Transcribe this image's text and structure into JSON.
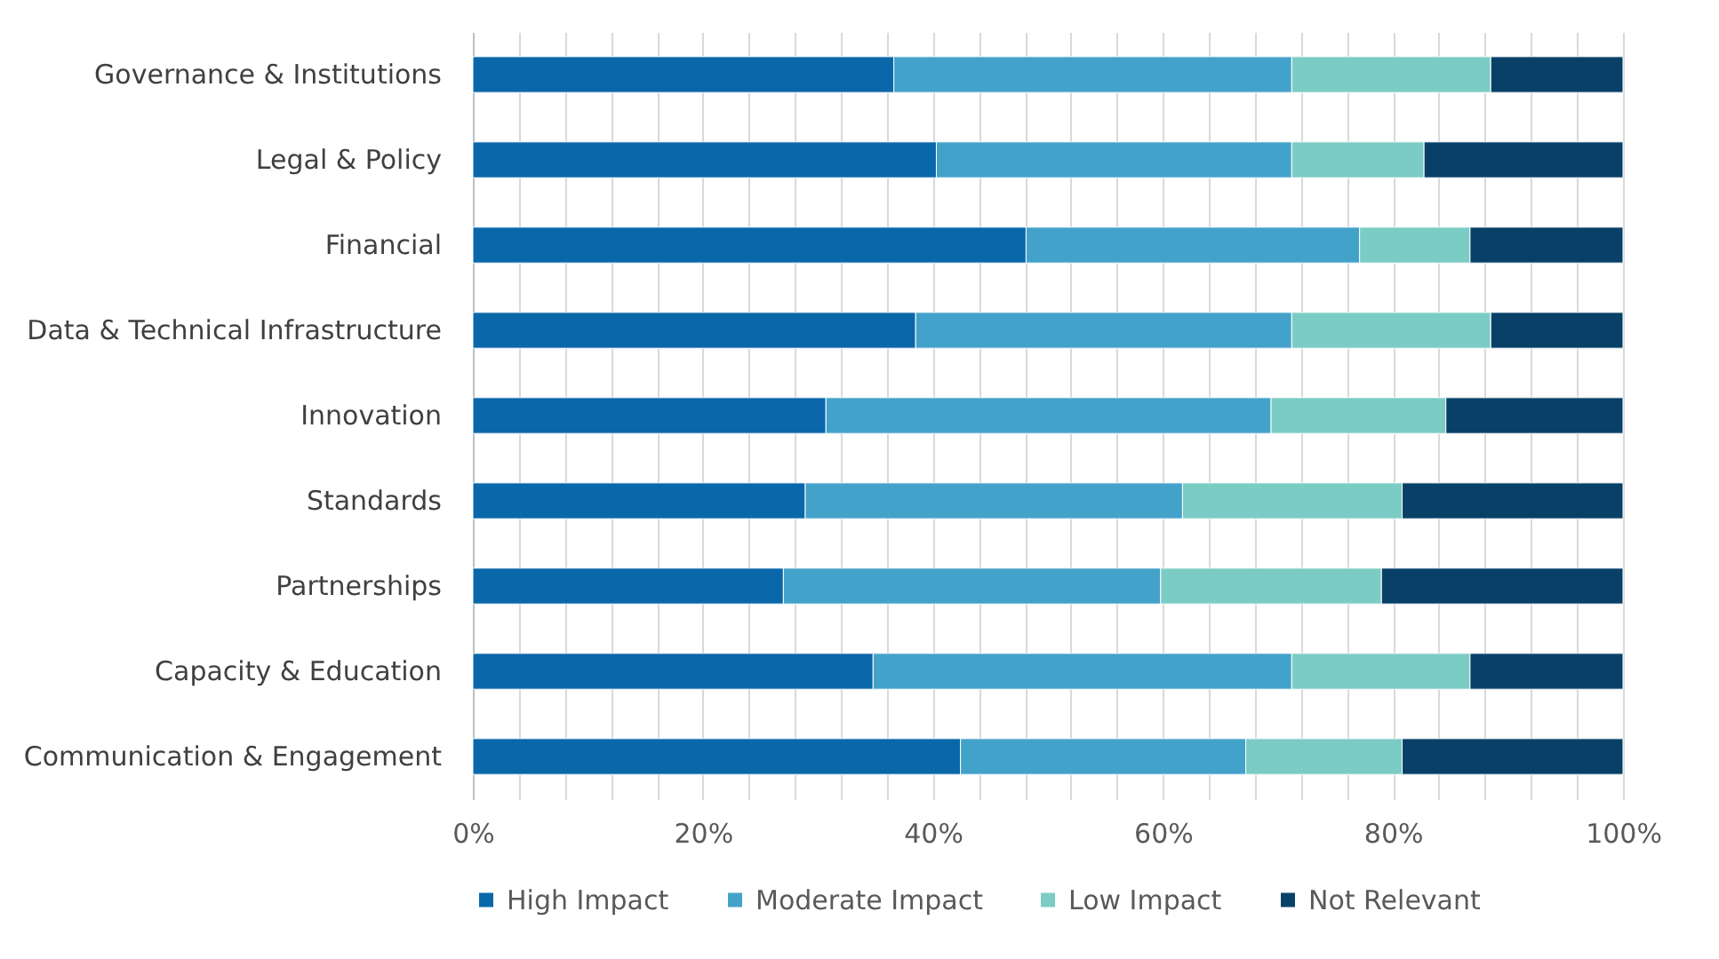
{
  "chart_data": {
    "type": "bar",
    "orientation": "horizontal",
    "stacked": true,
    "categories": [
      "Governance & Institutions",
      "Legal & Policy",
      "Financial",
      "Data & Technical Infrastructure",
      "Innovation",
      "Standards",
      "Partnerships",
      "Capacity & Education",
      "Communication & Engagement"
    ],
    "series": [
      {
        "name": "High Impact",
        "color": "#0a67aa",
        "values": [
          36.6,
          40.3,
          48.1,
          38.5,
          30.7,
          28.9,
          27.0,
          34.8,
          42.4
        ]
      },
      {
        "name": "Moderate Impact",
        "color": "#43a2ca",
        "values": [
          34.6,
          30.9,
          29.0,
          32.7,
          38.7,
          32.8,
          32.8,
          36.4,
          24.8
        ]
      },
      {
        "name": "Low Impact",
        "color": "#7bccc4",
        "values": [
          17.3,
          11.5,
          9.6,
          17.3,
          15.2,
          19.1,
          19.2,
          15.5,
          13.6
        ]
      },
      {
        "name": "Not Relevant",
        "color": "#084068",
        "values": [
          11.5,
          17.3,
          13.3,
          11.5,
          15.4,
          19.2,
          21.0,
          13.3,
          19.2
        ]
      }
    ],
    "xlim": [
      0,
      100
    ],
    "xticks": [
      {
        "value": 0,
        "label": "0%"
      },
      {
        "value": 4,
        "label": null
      },
      {
        "value": 8,
        "label": null
      },
      {
        "value": 12,
        "label": null
      },
      {
        "value": 16,
        "label": null
      },
      {
        "value": 20,
        "label": "20%"
      },
      {
        "value": 24,
        "label": null
      },
      {
        "value": 28,
        "label": null
      },
      {
        "value": 32,
        "label": null
      },
      {
        "value": 36,
        "label": null
      },
      {
        "value": 40,
        "label": "40%"
      },
      {
        "value": 44,
        "label": null
      },
      {
        "value": 48,
        "label": null
      },
      {
        "value": 52,
        "label": null
      },
      {
        "value": 56,
        "label": null
      },
      {
        "value": 60,
        "label": "60%"
      },
      {
        "value": 64,
        "label": null
      },
      {
        "value": 68,
        "label": null
      },
      {
        "value": 72,
        "label": null
      },
      {
        "value": 76,
        "label": null
      },
      {
        "value": 80,
        "label": "80%"
      },
      {
        "value": 84,
        "label": null
      },
      {
        "value": 88,
        "label": null
      },
      {
        "value": 92,
        "label": null
      },
      {
        "value": 96,
        "label": null
      },
      {
        "value": 100,
        "label": "100%"
      }
    ],
    "grid": true,
    "legend": "bottom"
  }
}
